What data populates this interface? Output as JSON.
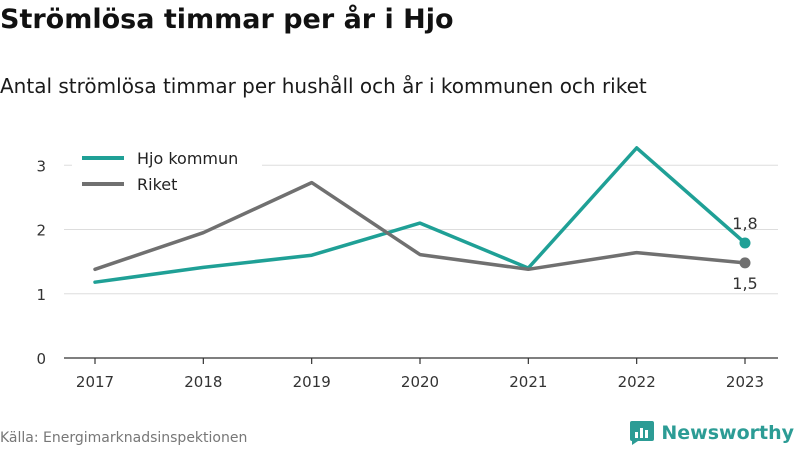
{
  "title": "Strömlösa timmar per år i Hjo",
  "subtitle": "Antal strömlösa timmar per hushåll och år i kommunen och riket",
  "source": "Källa: Energimarknadsinspektionen",
  "brand": {
    "name": "Newsworthy",
    "icon": "newsworthy-logo-icon",
    "color": "#2c9c95"
  },
  "chart_data": {
    "type": "line",
    "x": [
      2017,
      2018,
      2019,
      2020,
      2021,
      2022,
      2023
    ],
    "x_tick_labels": [
      "2017",
      "2018",
      "2019",
      "2020",
      "2021",
      "2022",
      "2023"
    ],
    "y_ticks": [
      0,
      1,
      2,
      3
    ],
    "y_tick_labels": [
      "0",
      "1",
      "2",
      "3"
    ],
    "ylim": [
      0,
      3.3
    ],
    "grid": true,
    "legend_position": "top-left",
    "series": [
      {
        "name": "Hjo kommun",
        "color": "#1fa096",
        "values": [
          1.18,
          1.41,
          1.6,
          2.1,
          1.4,
          3.27,
          1.79
        ],
        "end_label": "1,8"
      },
      {
        "name": "Riket",
        "color": "#707070",
        "values": [
          1.38,
          1.95,
          2.73,
          1.61,
          1.38,
          1.64,
          1.48
        ],
        "end_label": "1,5"
      }
    ]
  }
}
